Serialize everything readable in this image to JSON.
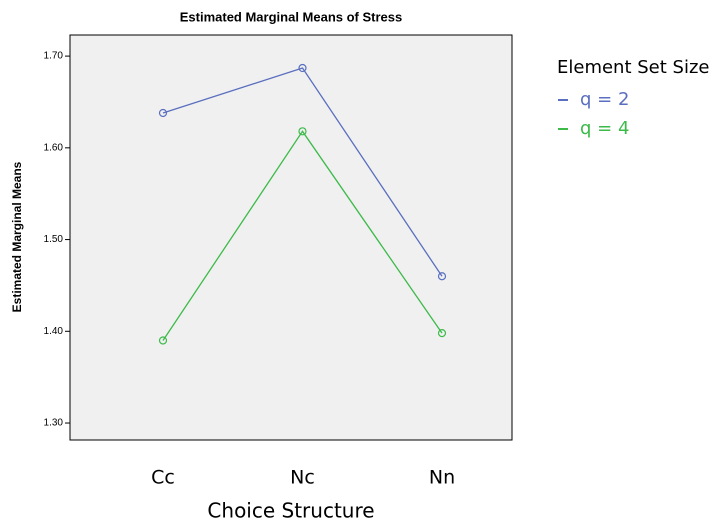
{
  "chart_data": {
    "type": "line",
    "title": "Estimated Marginal Means of Stress",
    "x_label": "Choice Structure",
    "y_label": "Estimated Marginal Means",
    "legend_title": "Element Set Size",
    "categories": [
      "Cc",
      "Nc",
      "Nn"
    ],
    "series": [
      {
        "name": "q = 2",
        "color": "#5a6fbf",
        "values": [
          1.638,
          1.687,
          1.46
        ]
      },
      {
        "name": "q = 4",
        "color": "#3cba4a",
        "values": [
          1.39,
          1.618,
          1.398
        ]
      }
    ],
    "ylim": [
      1.2815,
      1.723
    ],
    "yticks": [
      {
        "value": 1.3,
        "label": "1.30"
      },
      {
        "value": 1.4,
        "label": "1.40"
      },
      {
        "value": 1.5,
        "label": "1.50"
      },
      {
        "value": 1.6,
        "label": "1.60"
      },
      {
        "value": 1.7,
        "label": "1.70"
      }
    ],
    "legend": "right"
  }
}
